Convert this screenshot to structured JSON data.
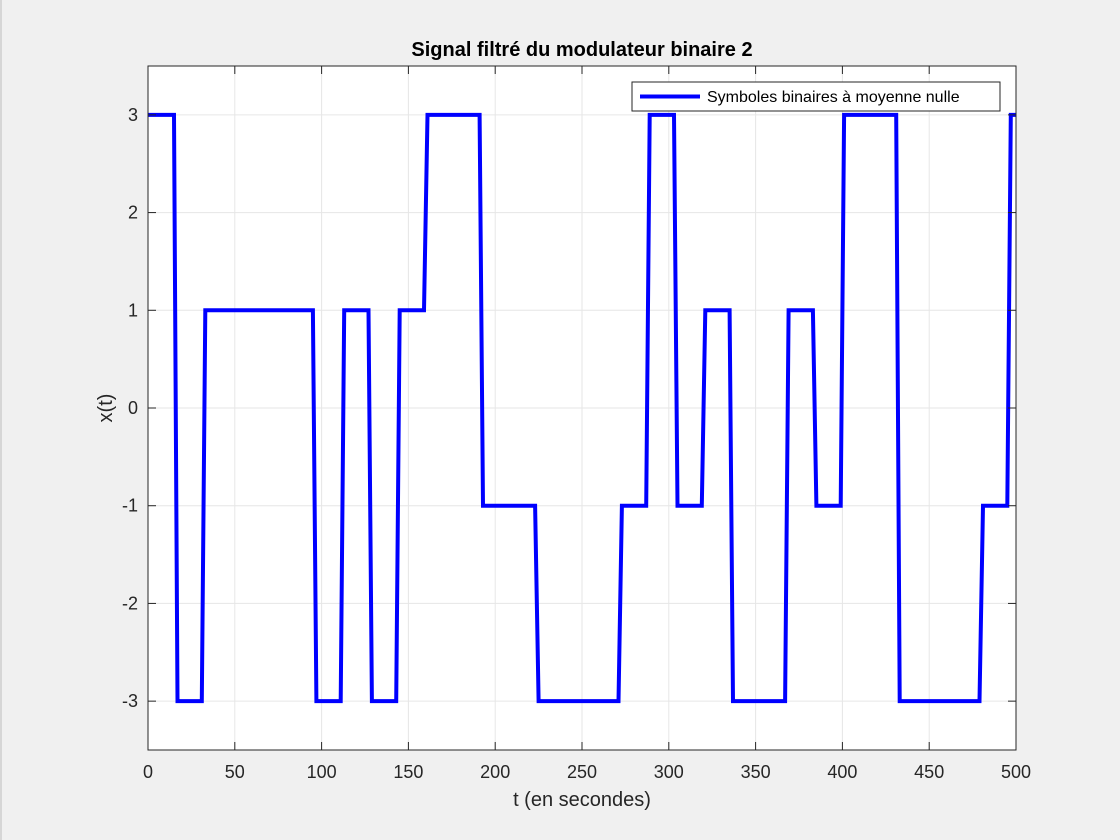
{
  "chart_data": {
    "type": "line",
    "title": "Signal filtré du modulateur binaire 2",
    "xlabel": "t (en secondes)",
    "ylabel": "x(t)",
    "xlim": [
      0,
      500
    ],
    "ylim": [
      -3.5,
      3.5
    ],
    "xticks": [
      0,
      50,
      100,
      150,
      200,
      250,
      300,
      350,
      400,
      450,
      500
    ],
    "yticks": [
      -3,
      -2,
      -1,
      0,
      1,
      2,
      3
    ],
    "xtick_labels": [
      "0",
      "50",
      "100",
      "150",
      "200",
      "250",
      "300",
      "350",
      "400",
      "450",
      "500"
    ],
    "ytick_labels": [
      "-3",
      "-2",
      "-1",
      "0",
      "1",
      "2",
      "3"
    ],
    "grid": true,
    "legend_position": "top-right",
    "colors": {
      "series": "#0000ff",
      "axes_background": "#ffffff",
      "figure_background": "#f0f0f0",
      "grid": "#e6e6e6",
      "axis": "#262626"
    },
    "series": [
      {
        "name": "Symboles binaires à moyenne nulle",
        "x": [
          0,
          15,
          17,
          31,
          33,
          95,
          97,
          111,
          113,
          127,
          129,
          143,
          145,
          159,
          161,
          191,
          193,
          223,
          225,
          271,
          273,
          287,
          289,
          303,
          305,
          319,
          321,
          335,
          337,
          367,
          369,
          383,
          385,
          399,
          401,
          431,
          433,
          479,
          481,
          495,
          497,
          500
        ],
        "y": [
          3,
          3,
          -3,
          -3,
          1,
          1,
          -3,
          -3,
          1,
          1,
          -3,
          -3,
          1,
          1,
          3,
          3,
          -1,
          -1,
          -3,
          -3,
          -1,
          -1,
          3,
          3,
          -1,
          -1,
          1,
          1,
          -3,
          -3,
          1,
          1,
          -1,
          -1,
          3,
          3,
          -3,
          -3,
          -1,
          -1,
          3,
          3
        ]
      }
    ]
  }
}
